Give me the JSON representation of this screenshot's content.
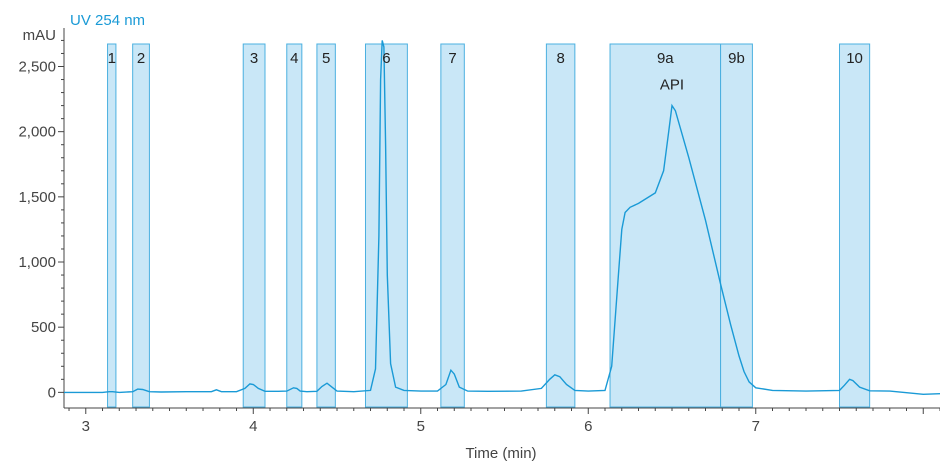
{
  "chart_data": {
    "type": "line",
    "series_label": "UV 254 nm",
    "ylabel": "mAU",
    "xlabel": "Time (min)",
    "xlim": [
      2.87,
      8.1
    ],
    "ylim": [
      -120,
      2780
    ],
    "x_ticks": [
      3,
      4,
      5,
      6,
      7
    ],
    "y_ticks": [
      0,
      500,
      1000,
      1500,
      2000,
      2500
    ],
    "y_tick_labels": [
      "0",
      "500",
      "1,000",
      "1,500",
      "2,000",
      "2,500"
    ],
    "grid": false,
    "colors": {
      "line": "#1a9ad6",
      "region_fill": "#bfe3f6",
      "region_stroke": "#4bb0e0",
      "axis": "#444444"
    },
    "regions": [
      {
        "label": "1",
        "x0": 3.13,
        "x1": 3.18
      },
      {
        "label": "2",
        "x0": 3.28,
        "x1": 3.38
      },
      {
        "label": "3",
        "x0": 3.94,
        "x1": 4.07
      },
      {
        "label": "4",
        "x0": 4.2,
        "x1": 4.29
      },
      {
        "label": "5",
        "x0": 4.38,
        "x1": 4.49
      },
      {
        "label": "6",
        "x0": 4.67,
        "x1": 4.92
      },
      {
        "label": "7",
        "x0": 5.12,
        "x1": 5.26
      },
      {
        "label": "8",
        "x0": 5.75,
        "x1": 5.92
      },
      {
        "label": "9a",
        "x0": 6.13,
        "x1": 6.79
      },
      {
        "label": "9b",
        "x0": 6.79,
        "x1": 6.98
      },
      {
        "label": "10",
        "x0": 7.5,
        "x1": 7.68
      }
    ],
    "annotations": [
      {
        "text": "API",
        "x": 6.5,
        "y": 2325
      }
    ],
    "series": [
      {
        "x": [
          2.87,
          3.1,
          3.14,
          3.16,
          3.2,
          3.28,
          3.31,
          3.34,
          3.38,
          3.45,
          3.6,
          3.75,
          3.78,
          3.81,
          3.9,
          3.95,
          3.98,
          4.0,
          4.03,
          4.07,
          4.15,
          4.2,
          4.24,
          4.26,
          4.28,
          4.32,
          4.38,
          4.41,
          4.44,
          4.46,
          4.5,
          4.6,
          4.7,
          4.73,
          4.75,
          4.76,
          4.77,
          4.78,
          4.79,
          4.8,
          4.82,
          4.85,
          4.9,
          5.0,
          5.1,
          5.15,
          5.18,
          5.2,
          5.23,
          5.28,
          5.4,
          5.6,
          5.72,
          5.77,
          5.8,
          5.83,
          5.87,
          5.92,
          6.0,
          6.1,
          6.14,
          6.18,
          6.2,
          6.22,
          6.25,
          6.3,
          6.4,
          6.45,
          6.48,
          6.5,
          6.52,
          6.6,
          6.7,
          6.79,
          6.85,
          6.9,
          6.93,
          6.96,
          7.0,
          7.1,
          7.3,
          7.5,
          7.53,
          7.56,
          7.58,
          7.62,
          7.68,
          7.8,
          8.0,
          8.1
        ],
        "y": [
          0,
          0,
          5,
          5,
          0,
          5,
          25,
          22,
          5,
          3,
          5,
          5,
          20,
          5,
          5,
          30,
          65,
          60,
          30,
          8,
          8,
          10,
          35,
          30,
          10,
          5,
          8,
          45,
          70,
          50,
          10,
          5,
          15,
          180,
          1200,
          2400,
          2700,
          2650,
          1900,
          900,
          220,
          40,
          15,
          10,
          10,
          60,
          170,
          140,
          40,
          10,
          8,
          10,
          30,
          100,
          135,
          120,
          60,
          15,
          10,
          15,
          200,
          900,
          1250,
          1380,
          1420,
          1450,
          1530,
          1700,
          2000,
          2200,
          2160,
          1800,
          1320,
          830,
          520,
          280,
          160,
          80,
          35,
          15,
          10,
          15,
          55,
          100,
          90,
          40,
          12,
          10,
          -15,
          -10
        ]
      }
    ]
  }
}
